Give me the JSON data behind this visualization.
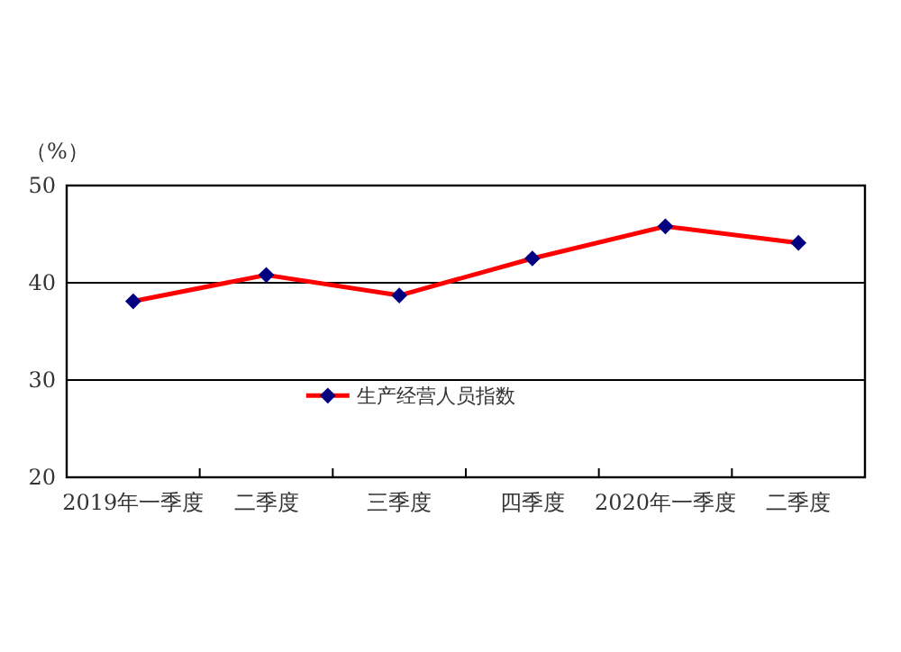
{
  "chart_data": {
    "type": "line",
    "ylabel": "（%）",
    "categories": [
      "2019年一季度",
      "二季度",
      "三季度",
      "四季度",
      "2020年一季度",
      "二季度"
    ],
    "series": [
      {
        "name": "生产经营人员指数",
        "color": "#ff0000",
        "values": [
          38.1,
          40.8,
          38.7,
          42.5,
          45.8,
          44.1
        ]
      }
    ],
    "ylim": [
      20,
      50
    ],
    "yticks": [
      20,
      30,
      40,
      50
    ],
    "grid": "y",
    "legend": "bottom",
    "marker": "diamond",
    "line_style": "solid"
  }
}
